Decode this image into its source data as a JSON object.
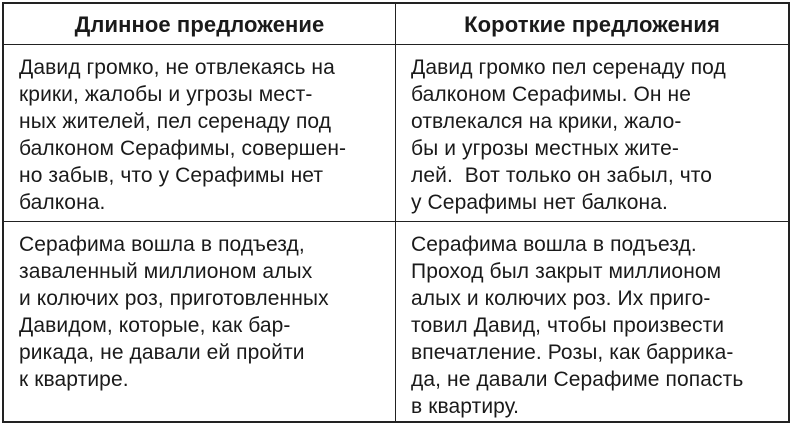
{
  "table": {
    "headers": [
      {
        "label": "Длинное предложение"
      },
      {
        "label": "Короткие предложения"
      }
    ],
    "rows": [
      {
        "long": "Давид громко, не отвлекаясь на\nкрики, жалобы и угрозы мест-\nных жителей, пел серенаду под\nбалконом Серафимы, совершен-\nно забыв, что у Серафимы нет\nбалкона.",
        "short": "Давид громко пел серенаду под\nбалконом Серафимы. Он не\nотвлекался на крики, жало-\nбы и угрозы местных жите-\nлей.  Вот только он забыл, что\nу Серафимы нет балкона."
      },
      {
        "long": "Серафима вошла в подъезд,\nзаваленный миллионом алых\nи колючих роз, приготовленных\nДавидом, которые, как бар-\nрикада, не давали ей пройти\nк квартире.",
        "short": "Серафима вошла в подъезд.\nПроход был закрыт миллионом\nалых и колючих роз. Их приго-\nтовил Давид, чтобы произвести\nвпечатление. Розы, как баррика-\nда, не давали Серафиме попасть\nв квартиру."
      }
    ],
    "border_color": "#222222",
    "text_color": "#1a1a1a"
  }
}
